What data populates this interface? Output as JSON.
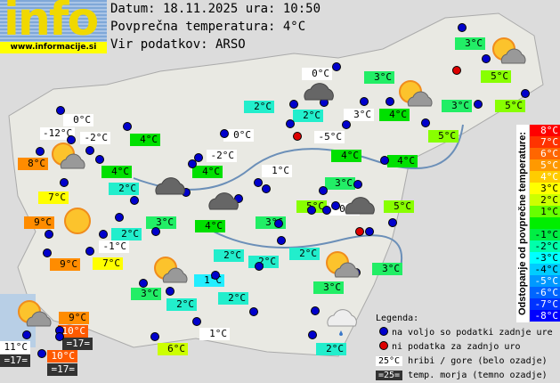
{
  "logo": {
    "text": "info",
    "url": "www.informacije.si"
  },
  "header": {
    "date_line": "Datum: 18.11.2025 ura: 10:50",
    "avg_line": "Povprečna temperatura: 4°C",
    "source_line": "Vir podatkov: ARSO"
  },
  "colors": {
    "white": "#ffffff",
    "dark": "#333333",
    "orange": "#ff8c00",
    "orangered": "#ff5a00",
    "yellow": "#ffff00",
    "yellowgreen": "#ccff00",
    "lime": "#88ff00",
    "green": "#00e000",
    "green2": "#22ee66",
    "cyan": "#22eecc",
    "cyan2": "#22eeff",
    "dot_ok": "#0000cc",
    "dot_missing": "#dd0000"
  },
  "stations": [
    {
      "t": "0°C",
      "c": "white"
    },
    {
      "t": "-12°C",
      "c": "white"
    },
    {
      "t": "-2°C",
      "c": "white"
    },
    {
      "t": "8°C",
      "c": "orange"
    },
    {
      "t": "4°C",
      "c": "green"
    },
    {
      "t": "4°C",
      "c": "green"
    },
    {
      "t": "2°C",
      "c": "cyan"
    },
    {
      "t": "7°C",
      "c": "yellow"
    },
    {
      "t": "9°C",
      "c": "orange"
    },
    {
      "t": "3°C",
      "c": "green2"
    },
    {
      "t": "2°C",
      "c": "cyan"
    },
    {
      "t": "-1°C",
      "c": "white"
    },
    {
      "t": "9°C",
      "c": "orange"
    },
    {
      "t": "7°C",
      "c": "yellow"
    },
    {
      "t": "0°C",
      "c": "white"
    },
    {
      "t": "-2°C",
      "c": "white"
    },
    {
      "t": "4°C",
      "c": "green"
    },
    {
      "t": "4°C",
      "c": "green"
    },
    {
      "t": "2°C",
      "c": "cyan"
    },
    {
      "t": "2°C",
      "c": "cyan"
    },
    {
      "t": "0°C",
      "c": "white"
    },
    {
      "t": "3°C",
      "c": "green2"
    },
    {
      "t": "3°C",
      "c": "white"
    },
    {
      "t": "4°C",
      "c": "green"
    },
    {
      "t": "-5°C",
      "c": "white"
    },
    {
      "t": "4°C",
      "c": "green"
    },
    {
      "t": "1°C",
      "c": "white"
    },
    {
      "t": "3°C",
      "c": "green2"
    },
    {
      "t": "5°C",
      "c": "lime"
    },
    {
      "t": "0°C",
      "c": "white"
    },
    {
      "t": "5°C",
      "c": "lime"
    },
    {
      "t": "4°C",
      "c": "green"
    },
    {
      "t": "5°C",
      "c": "lime"
    },
    {
      "t": "3°C",
      "c": "green2"
    },
    {
      "t": "5°C",
      "c": "lime"
    },
    {
      "t": "5°C",
      "c": "lime"
    },
    {
      "t": "3°C",
      "c": "green2"
    },
    {
      "t": "3°C",
      "c": "green2"
    },
    {
      "t": "2°C",
      "c": "cyan"
    },
    {
      "t": "2°C",
      "c": "cyan"
    },
    {
      "t": "2°C",
      "c": "cyan"
    },
    {
      "t": "3°C",
      "c": "green2"
    },
    {
      "t": "3°C",
      "c": "green2"
    },
    {
      "t": "1°C",
      "c": "cyan2"
    },
    {
      "t": "2°C",
      "c": "cyan"
    },
    {
      "t": "3°C",
      "c": "green2"
    },
    {
      "t": "2°C",
      "c": "cyan"
    },
    {
      "t": "9°C",
      "c": "orange"
    },
    {
      "t": "10°C",
      "c": "orangered"
    },
    {
      "t": "=17=",
      "c": "dark"
    },
    {
      "t": "11°C",
      "c": "white"
    },
    {
      "t": "=17=",
      "c": "dark"
    },
    {
      "t": "10°C",
      "c": "orangered"
    },
    {
      "t": "=17=",
      "c": "dark"
    },
    {
      "t": "6°C",
      "c": "yellowgreen"
    },
    {
      "t": "1°C",
      "c": "white"
    },
    {
      "t": "2°C",
      "c": "cyan"
    }
  ],
  "weather_icons": [
    "sun-cloud",
    "sun",
    "cloud",
    "cloud",
    "cloud",
    "sun-cloud",
    "sun-cloud",
    "cloud",
    "sun-cloud",
    "sun-cloud",
    "sun-cloud",
    "rain-cloud"
  ],
  "scale": {
    "title": "Odstopanje od povprečne temperature:",
    "items": [
      {
        "t": "8°C",
        "c": "#ff0000"
      },
      {
        "t": "7°C",
        "c": "#ff3300"
      },
      {
        "t": "6°C",
        "c": "#ff6600"
      },
      {
        "t": "5°C",
        "c": "#ff9900"
      },
      {
        "t": "4°C",
        "c": "#ffcc00"
      },
      {
        "t": "3°C",
        "c": "#ffff00"
      },
      {
        "t": "2°C",
        "c": "#ccff00"
      },
      {
        "t": "1°C",
        "c": "#66ff00"
      },
      {
        "t": "",
        "c": "#00ee00"
      },
      {
        "t": "-1°C",
        "c": "#00ee44"
      },
      {
        "t": "-2°C",
        "c": "#00ffaa"
      },
      {
        "t": "-3°C",
        "c": "#00ffff"
      },
      {
        "t": "-4°C",
        "c": "#00ccff"
      },
      {
        "t": "-5°C",
        "c": "#0099ff"
      },
      {
        "t": "-6°C",
        "c": "#0066ff"
      },
      {
        "t": "-7°C",
        "c": "#0033ff"
      },
      {
        "t": "-8°C",
        "c": "#0000ff"
      }
    ]
  },
  "legend": {
    "title": "Legenda:",
    "available": "na voljo so podatki zadnje ure",
    "missing": "ni podatka za zadnjo uro",
    "mountain_sample": "25°C",
    "mountain_text": "hribi / gore (belo ozadje)",
    "sea_sample": "=25=",
    "sea_text": "temp. morja (temno ozadje)"
  }
}
